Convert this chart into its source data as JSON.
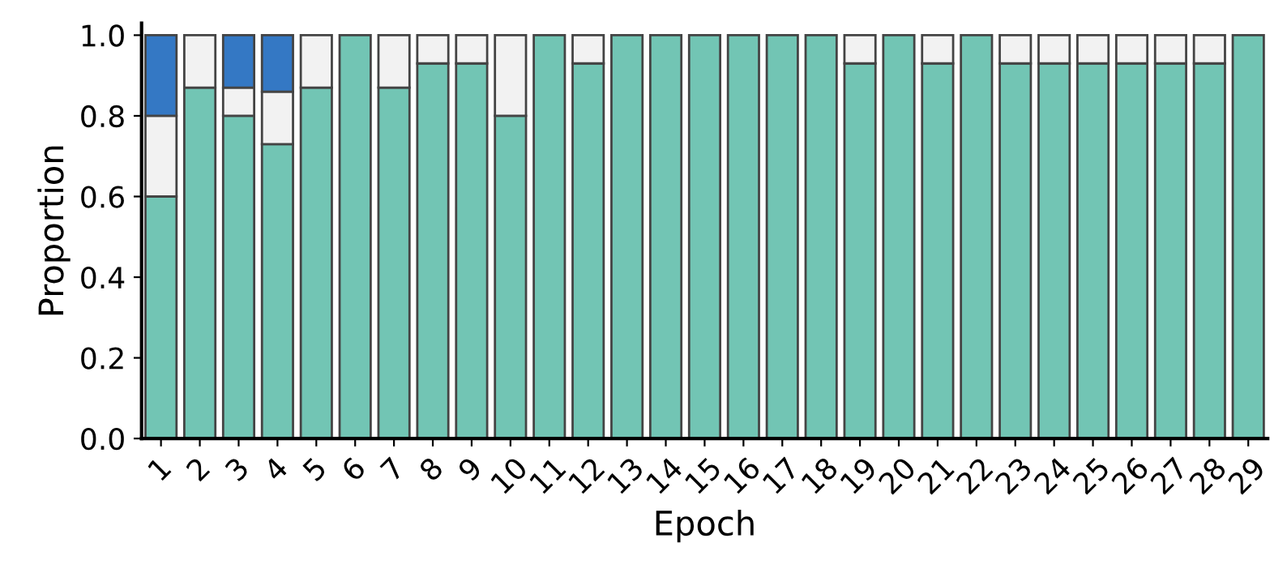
{
  "chart_data": {
    "type": "bar",
    "stacked": true,
    "xlabel": "Epoch",
    "ylabel": "Proportion",
    "categories": [
      "1",
      "2",
      "3",
      "4",
      "5",
      "6",
      "7",
      "8",
      "9",
      "10",
      "11",
      "12",
      "13",
      "14",
      "15",
      "16",
      "17",
      "18",
      "19",
      "20",
      "21",
      "22",
      "23",
      "24",
      "25",
      "26",
      "27",
      "28",
      "29"
    ],
    "series": [
      {
        "color": "#72c5b4",
        "values": [
          0.6,
          0.87,
          0.8,
          0.73,
          0.87,
          1,
          0.87,
          0.93,
          0.93,
          0.8,
          1,
          0.93,
          1,
          1,
          1,
          1,
          1,
          1,
          0.93,
          1,
          0.93,
          1,
          0.93,
          0.93,
          0.93,
          0.93,
          0.93,
          0.93,
          1
        ]
      },
      {
        "color": "#f2f2f2",
        "values": [
          0.2,
          0.13,
          0.07,
          0.13,
          0.13,
          0,
          0.13,
          0.07,
          0.07,
          0.2,
          0,
          0.07,
          0,
          0,
          0,
          0,
          0,
          0,
          0.07,
          0,
          0.07,
          0,
          0.07,
          0.07,
          0.07,
          0.07,
          0.07,
          0.07,
          0
        ]
      },
      {
        "color": "#3478c4",
        "values": [
          0.2,
          0,
          0.13,
          0.14,
          0,
          0,
          0,
          0,
          0,
          0,
          0,
          0,
          0,
          0,
          0,
          0,
          0,
          0,
          0,
          0,
          0,
          0,
          0,
          0,
          0,
          0,
          0,
          0,
          0
        ]
      }
    ],
    "ylim": [
      0,
      1.03
    ],
    "yticks": [
      {
        "value": 0,
        "label": "0.0"
      },
      {
        "value": 0.2,
        "label": "0.2"
      },
      {
        "value": 0.4,
        "label": "0.4"
      },
      {
        "value": 0.6,
        "label": "0.6"
      },
      {
        "value": 0.8,
        "label": "0.8"
      },
      {
        "value": 1,
        "label": "1.0"
      }
    ],
    "grid": false
  }
}
